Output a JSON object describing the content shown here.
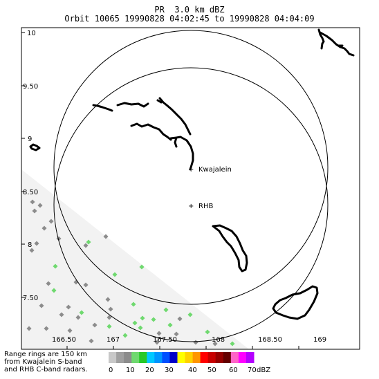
{
  "title": {
    "line1": "PR  3.0 km dBZ",
    "line2": "Orbit 10065 19990828 04:02:45 to 19990828 04:04:09"
  },
  "map": {
    "lon_ticks": [
      "166.50",
      "167",
      "167.50",
      "168",
      "168.50",
      "169"
    ],
    "lat_ticks": [
      "10",
      "9.50",
      "9",
      "8.50",
      "8",
      "7.50"
    ],
    "sites": [
      {
        "name": "Kwajalein",
        "symbol": "+"
      },
      {
        "name": "RHB",
        "symbol": "+"
      }
    ],
    "swath_color": "#f2f2f2",
    "ring_color": "#000000",
    "coast_color": "#000000"
  },
  "range_note": [
    "Range rings are 150 km",
    "from Kwajalein S-band",
    "and RHB C-band radars."
  ],
  "colorbar": {
    "colors": [
      "#c8c8c8",
      "#a0a0a0",
      "#8c8c8c",
      "#6fd96f",
      "#28c828",
      "#00c8ff",
      "#0096ff",
      "#0050ff",
      "#0000c8",
      "#ffff00",
      "#ffd200",
      "#ff9600",
      "#ff0000",
      "#c80000",
      "#960000",
      "#640000",
      "#ff64c8",
      "#ff00ff",
      "#b400ff"
    ],
    "labels": [
      "0",
      "10",
      "20",
      "30",
      "40",
      "50",
      "60",
      "70"
    ],
    "unit": "dBZ"
  },
  "echoes": {
    "gray_color": "#8c8c8c",
    "green_color": "#6fd96f"
  }
}
